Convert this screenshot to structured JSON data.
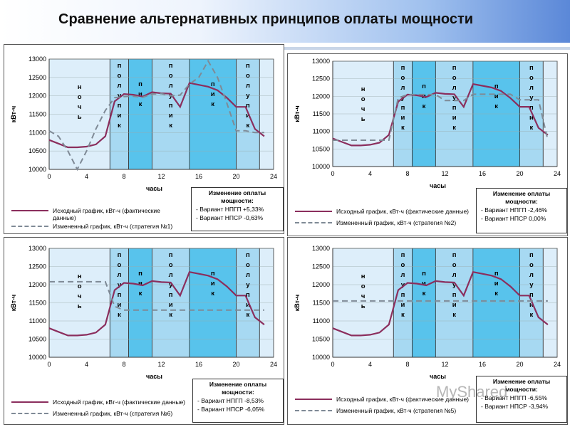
{
  "title": "Сравнение альтернативных принципов оплаты мощности",
  "watermark": "MyShared",
  "colors": {
    "original": "#8b2e5d",
    "changed": "#7f8a96",
    "band_light": "#ddeefa",
    "band_mid": "#a7d9f2",
    "band_dark": "#58c3ec"
  },
  "chart_data": [
    {
      "type": "line",
      "xlabel": "часы",
      "ylabel": "кВт-ч",
      "xlim": [
        0,
        24
      ],
      "ylim": [
        10000,
        13000
      ],
      "xticks": [
        0,
        4,
        8,
        12,
        16,
        20,
        24
      ],
      "yticks": [
        10000,
        10500,
        11000,
        11500,
        12000,
        12500,
        13000
      ],
      "periods": [
        {
          "label": "ночь",
          "from": 0,
          "to": 6.5,
          "shade": "light"
        },
        {
          "label": "полупик",
          "from": 6.5,
          "to": 8.5,
          "shade": "mid"
        },
        {
          "label": "пик",
          "from": 8.5,
          "to": 11,
          "shade": "dark"
        },
        {
          "label": "полупик",
          "from": 11,
          "to": 15,
          "shade": "mid"
        },
        {
          "label": "пик",
          "from": 15,
          "to": 20,
          "shade": "dark"
        },
        {
          "label": "полупик",
          "from": 20,
          "to": 22.5,
          "shade": "mid"
        },
        {
          "label": "",
          "from": 22.5,
          "to": 24,
          "shade": "light"
        }
      ],
      "series": [
        {
          "name": "Исходный график, кВт-ч (фактические данные)",
          "style": "solid",
          "x": [
            0,
            1,
            2,
            3,
            4,
            5,
            6,
            7,
            8,
            9,
            10,
            11,
            12,
            13,
            14,
            15,
            16,
            17,
            18,
            19,
            20,
            21,
            22,
            23
          ],
          "y": [
            10800,
            10700,
            10600,
            10600,
            10620,
            10680,
            10900,
            11850,
            12050,
            12030,
            11980,
            12100,
            12070,
            12060,
            11700,
            12350,
            12300,
            12250,
            12150,
            11950,
            11700,
            11700,
            11100,
            10900
          ]
        },
        {
          "name": "Измененный график, кВт-ч (стратегия №1)",
          "style": "dashed",
          "x": [
            0,
            1,
            2,
            3,
            4,
            5,
            6,
            7,
            8,
            9,
            10,
            11,
            12,
            13,
            14,
            15,
            16,
            17,
            18,
            19,
            20,
            21,
            22,
            23
          ],
          "y": [
            11050,
            10900,
            10500,
            10000,
            10500,
            11100,
            11600,
            11950,
            11980,
            11990,
            11960,
            12050,
            12060,
            12000,
            12020,
            12320,
            12500,
            12950,
            12500,
            11800,
            11050,
            11050,
            11000,
            11000
          ]
        }
      ],
      "box": {
        "title": "Изменение оплаты мощности:",
        "lines": [
          "- Вариант НПГП +5,33%",
          "- Вариант НПСР -0,63%"
        ]
      },
      "legend_labels": [
        "Исходный график, кВт-ч (фактические",
        "данные)"
      ]
    },
    {
      "type": "line",
      "xlabel": "часы",
      "ylabel": "кВт-ч",
      "xlim": [
        0,
        24
      ],
      "ylim": [
        10000,
        13000
      ],
      "xticks": [
        0,
        4,
        8,
        12,
        16,
        20,
        24
      ],
      "yticks": [
        10000,
        10500,
        11000,
        11500,
        12000,
        12500,
        13000
      ],
      "periods": [
        {
          "label": "ночь",
          "from": 0,
          "to": 6.5,
          "shade": "light"
        },
        {
          "label": "полупик",
          "from": 6.5,
          "to": 8.5,
          "shade": "mid"
        },
        {
          "label": "пик",
          "from": 8.5,
          "to": 11,
          "shade": "dark"
        },
        {
          "label": "полупик",
          "from": 11,
          "to": 15,
          "shade": "mid"
        },
        {
          "label": "пик",
          "from": 15,
          "to": 20,
          "shade": "dark"
        },
        {
          "label": "полупик",
          "from": 20,
          "to": 22.5,
          "shade": "mid"
        },
        {
          "label": "",
          "from": 22.5,
          "to": 24,
          "shade": "light"
        }
      ],
      "series": [
        {
          "name": "Исходный график, кВт-ч (фактические данные)",
          "style": "solid",
          "x": [
            0,
            1,
            2,
            3,
            4,
            5,
            6,
            7,
            8,
            9,
            10,
            11,
            12,
            13,
            14,
            15,
            16,
            17,
            18,
            19,
            20,
            21,
            22,
            23
          ],
          "y": [
            10800,
            10700,
            10600,
            10600,
            10620,
            10680,
            10900,
            11850,
            12050,
            12030,
            11980,
            12100,
            12070,
            12060,
            11700,
            12350,
            12300,
            12250,
            12150,
            11950,
            11700,
            11700,
            11100,
            10900
          ]
        },
        {
          "name": "Измененный график, кВт-ч (стратегия №2)",
          "style": "dashed",
          "x": [
            0,
            1,
            2,
            3,
            4,
            5,
            6,
            7,
            8,
            9,
            10,
            11,
            12,
            13,
            14,
            15,
            16,
            17,
            18,
            19,
            20,
            21,
            22,
            23
          ],
          "y": [
            10750,
            10750,
            10750,
            10750,
            10750,
            10750,
            10750,
            11950,
            12050,
            12050,
            12050,
            12050,
            11880,
            11880,
            11880,
            12060,
            12060,
            12060,
            12060,
            12060,
            11900,
            11900,
            11900,
            10750
          ]
        }
      ],
      "box": {
        "title": "Изменение оплаты мощности:",
        "lines": [
          "- Вариант НПГП -2,46%",
          "- Вариант НПСР 0,00%"
        ]
      },
      "legend_labels": [
        "Исходный график, кВт-ч (фактические данные)"
      ]
    },
    {
      "type": "line",
      "xlabel": "часы",
      "ylabel": "кВт-ч",
      "xlim": [
        0,
        24
      ],
      "ylim": [
        10000,
        13000
      ],
      "xticks": [
        0,
        4,
        8,
        12,
        16,
        20,
        24
      ],
      "yticks": [
        10000,
        10500,
        11000,
        11500,
        12000,
        12500,
        13000
      ],
      "periods": [
        {
          "label": "ночь",
          "from": 0,
          "to": 6.5,
          "shade": "light"
        },
        {
          "label": "полупик",
          "from": 6.5,
          "to": 8.5,
          "shade": "mid"
        },
        {
          "label": "пик",
          "from": 8.5,
          "to": 11,
          "shade": "dark"
        },
        {
          "label": "полупик",
          "from": 11,
          "to": 15,
          "shade": "mid"
        },
        {
          "label": "пик",
          "from": 15,
          "to": 20,
          "shade": "dark"
        },
        {
          "label": "полупик",
          "from": 20,
          "to": 22.5,
          "shade": "mid"
        },
        {
          "label": "",
          "from": 22.5,
          "to": 24,
          "shade": "light"
        }
      ],
      "series": [
        {
          "name": "Исходный график, кВт-ч (фактические данные)",
          "style": "solid",
          "x": [
            0,
            1,
            2,
            3,
            4,
            5,
            6,
            7,
            8,
            9,
            10,
            11,
            12,
            13,
            14,
            15,
            16,
            17,
            18,
            19,
            20,
            21,
            22,
            23
          ],
          "y": [
            10800,
            10700,
            10600,
            10600,
            10620,
            10680,
            10900,
            11850,
            12050,
            12030,
            11980,
            12100,
            12070,
            12060,
            11700,
            12350,
            12300,
            12250,
            12150,
            11950,
            11700,
            11700,
            11100,
            10900
          ]
        },
        {
          "name": "Измененный график, кВт-ч (стратегия №6)",
          "style": "dashed",
          "x": [
            0,
            1,
            2,
            3,
            4,
            5,
            6,
            7,
            8,
            9,
            10,
            11,
            12,
            13,
            14,
            15,
            16,
            17,
            18,
            19,
            20,
            21,
            22,
            23
          ],
          "y": [
            12080,
            12080,
            12080,
            12080,
            12080,
            12080,
            12080,
            11400,
            11300,
            11300,
            11300,
            11300,
            11300,
            11300,
            11300,
            11300,
            11300,
            11300,
            11300,
            11300,
            11300,
            11300,
            11300,
            11300
          ]
        }
      ],
      "box": {
        "title": "Изменение оплаты мощности:",
        "lines": [
          "- Вариант НПГП -8,53%",
          "- Вариант НПСР -6,05%"
        ]
      },
      "legend_labels": [
        "Исходный график, кВт-ч (фактические данные)"
      ]
    },
    {
      "type": "line",
      "xlabel": "часы",
      "ylabel": "кВт-ч",
      "xlim": [
        0,
        24
      ],
      "ylim": [
        10000,
        13000
      ],
      "xticks": [
        0,
        4,
        8,
        12,
        16,
        20,
        24
      ],
      "yticks": [
        10000,
        10500,
        11000,
        11500,
        12000,
        12500,
        13000
      ],
      "periods": [
        {
          "label": "ночь",
          "from": 0,
          "to": 6.5,
          "shade": "light"
        },
        {
          "label": "полупик",
          "from": 6.5,
          "to": 8.5,
          "shade": "mid"
        },
        {
          "label": "пик",
          "from": 8.5,
          "to": 11,
          "shade": "dark"
        },
        {
          "label": "полупик",
          "from": 11,
          "to": 15,
          "shade": "mid"
        },
        {
          "label": "пик",
          "from": 15,
          "to": 20,
          "shade": "dark"
        },
        {
          "label": "полупик",
          "from": 20,
          "to": 22.5,
          "shade": "mid"
        },
        {
          "label": "",
          "from": 22.5,
          "to": 24,
          "shade": "light"
        }
      ],
      "series": [
        {
          "name": "Исходный график, кВт-ч (фактические данные)",
          "style": "solid",
          "x": [
            0,
            1,
            2,
            3,
            4,
            5,
            6,
            7,
            8,
            9,
            10,
            11,
            12,
            13,
            14,
            15,
            16,
            17,
            18,
            19,
            20,
            21,
            22,
            23
          ],
          "y": [
            10800,
            10700,
            10600,
            10600,
            10620,
            10680,
            10900,
            11850,
            12050,
            12030,
            11980,
            12100,
            12070,
            12060,
            11700,
            12350,
            12300,
            12250,
            12150,
            11950,
            11700,
            11700,
            11100,
            10900
          ]
        },
        {
          "name": "Измененный график, кВт-ч (стратегия №5)",
          "style": "dashed",
          "x": [
            0,
            1,
            2,
            3,
            4,
            5,
            6,
            7,
            8,
            9,
            10,
            11,
            12,
            13,
            14,
            15,
            16,
            17,
            18,
            19,
            20,
            21,
            22,
            23
          ],
          "y": [
            11550,
            11550,
            11550,
            11550,
            11550,
            11550,
            11550,
            11550,
            11550,
            11550,
            11550,
            11550,
            11550,
            11550,
            11550,
            11550,
            11550,
            11550,
            11550,
            11550,
            11550,
            11550,
            11550,
            11550
          ]
        }
      ],
      "box": {
        "title": "Изменение оплаты мощности:",
        "lines": [
          "- Вариант НПГП -6,55%",
          "- Вариант НПСР -3,94%"
        ]
      },
      "legend_labels": [
        "Исходный график, кВт-ч (фактические данные)"
      ]
    }
  ]
}
